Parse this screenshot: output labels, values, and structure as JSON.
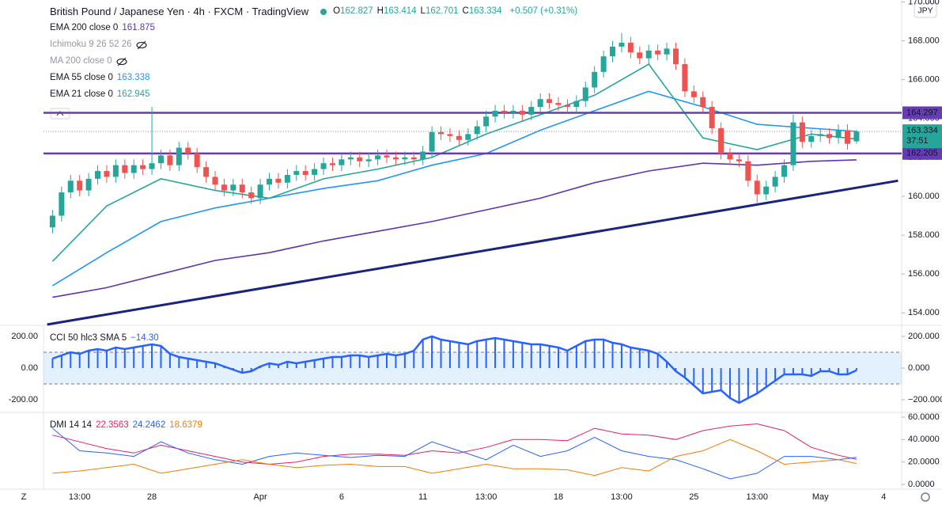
{
  "header": {
    "symbol": "British Pound / Japanese Yen · 4h · FXCM · TradingView",
    "ohlc_prefixes": [
      "O",
      "H",
      "L",
      "C"
    ],
    "change": "+0.507 (+0.31%)",
    "currency": "JPY",
    "countdown": "37:51",
    "timezone_button": "Z"
  },
  "chart_data": [
    {
      "type": "candlestick",
      "open": [
        158.4,
        159.0,
        160.2,
        160.8,
        160.3,
        160.9,
        161.3,
        161.0,
        161.6,
        161.2,
        161.6,
        161.4,
        161.7,
        162.1,
        161.6,
        162.5,
        162.2,
        161.5,
        161.0,
        160.6,
        160.3,
        160.6,
        160.2,
        159.9,
        160.6,
        160.9,
        160.7,
        161.1,
        161.3,
        161.1,
        161.4,
        161.7,
        161.6,
        161.9,
        162.0,
        161.8,
        161.9,
        162.1,
        162.0,
        161.9,
        162.0,
        161.9,
        162.3,
        163.3,
        163.2,
        163.1,
        162.9,
        163.2,
        163.6,
        164.1,
        164.4,
        164.3,
        164.4,
        164.2,
        164.6,
        165.0,
        164.8,
        164.7,
        164.6,
        164.9,
        165.6,
        166.4,
        167.2,
        167.7,
        167.9,
        167.4,
        167.1,
        167.5,
        167.3,
        167.6,
        166.8,
        165.4,
        165.1,
        164.6,
        163.5,
        162.2,
        161.9,
        161.8,
        160.8,
        160.1,
        160.5,
        161.0,
        161.6,
        163.8,
        162.8,
        163.1,
        163.2,
        163.0,
        163.4,
        162.827
      ],
      "high": [
        159.3,
        160.5,
        161.1,
        161.1,
        161.2,
        161.6,
        161.6,
        161.9,
        161.9,
        161.9,
        161.9,
        164.6,
        162.4,
        162.4,
        162.8,
        162.8,
        162.5,
        161.8,
        161.3,
        160.9,
        160.9,
        160.9,
        160.5,
        160.9,
        161.2,
        161.2,
        161.4,
        161.6,
        161.6,
        161.7,
        162.0,
        162.0,
        162.2,
        162.3,
        162.3,
        162.2,
        162.4,
        162.4,
        162.3,
        162.3,
        162.3,
        162.6,
        163.6,
        163.6,
        163.5,
        163.4,
        163.5,
        163.9,
        164.4,
        164.7,
        164.7,
        164.7,
        164.7,
        164.9,
        165.3,
        165.3,
        165.1,
        165.0,
        165.2,
        165.9,
        166.7,
        167.5,
        168.0,
        168.4,
        168.2,
        167.7,
        167.8,
        167.8,
        167.9,
        167.9,
        167.1,
        165.7,
        165.4,
        164.9,
        163.8,
        162.5,
        162.2,
        162.1,
        161.1,
        160.8,
        161.3,
        161.9,
        164.2,
        164.1,
        163.4,
        163.5,
        163.5,
        163.7,
        163.7,
        163.414
      ],
      "low": [
        158.1,
        158.7,
        159.9,
        160.0,
        160.0,
        160.6,
        160.7,
        160.7,
        160.9,
        160.9,
        161.1,
        161.1,
        161.4,
        161.3,
        161.3,
        161.9,
        161.2,
        160.7,
        160.3,
        160.0,
        160.0,
        159.9,
        159.6,
        159.6,
        160.3,
        160.4,
        160.4,
        160.8,
        160.8,
        160.8,
        161.1,
        161.3,
        161.3,
        161.6,
        161.5,
        161.5,
        161.6,
        161.7,
        161.6,
        161.6,
        161.6,
        161.6,
        162.0,
        162.9,
        162.8,
        162.6,
        162.6,
        162.9,
        163.3,
        163.8,
        164.0,
        164.0,
        163.9,
        163.9,
        164.3,
        164.5,
        164.4,
        164.3,
        164.3,
        164.6,
        165.3,
        166.1,
        166.9,
        167.4,
        167.1,
        166.8,
        166.8,
        167.0,
        167.0,
        166.5,
        165.1,
        164.8,
        164.3,
        163.2,
        161.9,
        161.6,
        161.5,
        160.5,
        159.6,
        159.8,
        160.2,
        160.7,
        161.3,
        162.5,
        162.5,
        162.8,
        162.7,
        162.7,
        162.4,
        162.701
      ],
      "close": [
        159.0,
        160.2,
        160.8,
        160.3,
        160.9,
        161.3,
        161.0,
        161.6,
        161.2,
        161.6,
        161.4,
        161.7,
        162.1,
        161.6,
        162.5,
        162.2,
        161.5,
        161.0,
        160.6,
        160.3,
        160.6,
        160.2,
        159.9,
        160.6,
        160.9,
        160.7,
        161.1,
        161.3,
        161.1,
        161.4,
        161.7,
        161.6,
        161.9,
        162.0,
        161.8,
        161.9,
        162.1,
        162.0,
        161.9,
        162.0,
        161.9,
        162.3,
        163.3,
        163.2,
        163.1,
        162.9,
        163.2,
        163.6,
        164.1,
        164.4,
        164.3,
        164.4,
        164.2,
        164.6,
        165.0,
        164.8,
        164.7,
        164.6,
        164.9,
        165.6,
        166.4,
        167.2,
        167.7,
        167.9,
        167.4,
        167.1,
        167.5,
        167.3,
        167.6,
        166.8,
        165.4,
        165.1,
        164.6,
        163.5,
        162.2,
        161.9,
        161.8,
        160.8,
        160.1,
        160.5,
        161.0,
        161.6,
        163.8,
        162.8,
        163.1,
        163.2,
        163.0,
        163.4,
        162.7,
        163.334
      ],
      "up_color": "#26a69a",
      "down_color": "#ef5350",
      "xlim": [
        -1,
        94
      ],
      "xticks": [
        {
          "value": 3,
          "label": "13:00"
        },
        {
          "value": 11,
          "label": "28"
        },
        {
          "value": 23,
          "label": "Apr"
        },
        {
          "value": 32,
          "label": "6"
        },
        {
          "value": 41,
          "label": "11"
        },
        {
          "value": 48,
          "label": "13:00"
        },
        {
          "value": 56,
          "label": "18"
        },
        {
          "value": 63,
          "label": "13:00"
        },
        {
          "value": 71,
          "label": "25"
        },
        {
          "value": 78,
          "label": "13:00"
        },
        {
          "value": 85,
          "label": "May"
        },
        {
          "value": 92,
          "label": "4"
        }
      ],
      "ylim": [
        153.4,
        170.1
      ],
      "yticks": [
        {
          "value": 154,
          "label": "154.000"
        },
        {
          "value": 156,
          "label": "156.000"
        },
        {
          "value": 158,
          "label": "158.000"
        },
        {
          "value": 160,
          "label": "160.000"
        },
        {
          "value": 162,
          "label": "162.000"
        },
        {
          "value": 164,
          "label": "164.000"
        },
        {
          "value": 166,
          "label": "166.000"
        },
        {
          "value": 168,
          "label": "168.000"
        },
        {
          "value": 170,
          "label": "170.000"
        }
      ],
      "indicators": [
        {
          "name": "EMA 200 close 0",
          "color": "#5e35b1",
          "x": [
            0,
            6,
            12,
            18,
            24,
            30,
            36,
            42,
            48,
            54,
            60,
            66,
            72,
            78,
            84,
            89
          ],
          "values": [
            154.8,
            155.3,
            156.0,
            156.7,
            157.1,
            157.7,
            158.2,
            158.7,
            159.3,
            159.9,
            160.7,
            161.3,
            161.7,
            161.6,
            161.8,
            161.875
          ]
        },
        {
          "name": "Ichimoku 9 26 52 26"
        },
        {
          "name": "MA 200 close 0"
        },
        {
          "name": "EMA 55 close 0",
          "color": "#2196f3",
          "x": [
            0,
            6,
            12,
            18,
            24,
            30,
            36,
            42,
            48,
            54,
            60,
            66,
            72,
            78,
            84,
            89
          ],
          "values": [
            155.4,
            157.1,
            158.7,
            159.4,
            159.9,
            160.4,
            160.8,
            161.6,
            162.2,
            163.4,
            164.4,
            165.4,
            164.6,
            163.7,
            163.5,
            163.338
          ]
        },
        {
          "name": "EMA 21 close 0",
          "color": "#26a69a",
          "x": [
            0,
            6,
            12,
            18,
            24,
            30,
            36,
            42,
            48,
            54,
            60,
            66,
            72,
            78,
            84,
            89
          ],
          "values": [
            156.65,
            159.5,
            160.9,
            160.3,
            159.9,
            160.9,
            161.4,
            162.0,
            163.2,
            164.2,
            165.2,
            166.8,
            163.0,
            162.4,
            163.2,
            162.945
          ]
        }
      ],
      "hlines": [
        {
          "value": 164.297,
          "color": "#673ab7"
        },
        {
          "value": 162.205,
          "color": "#673ab7"
        }
      ],
      "trendline": {
        "x": [
          -0.6,
          93.6
        ],
        "values": [
          153.4,
          160.8
        ],
        "color": "#1a237e"
      }
    },
    {
      "type": "bar",
      "title": "CCI 50 hlc3 SMA 5",
      "legend_value": "−14.30",
      "color": "#2962ff",
      "values": [
        60,
        80,
        100,
        90,
        110,
        120,
        110,
        130,
        120,
        130,
        140,
        150,
        140,
        90,
        70,
        60,
        50,
        40,
        30,
        10,
        -10,
        -30,
        -20,
        10,
        30,
        20,
        40,
        30,
        40,
        50,
        60,
        70,
        70,
        80,
        80,
        70,
        80,
        90,
        80,
        90,
        110,
        180,
        200,
        180,
        170,
        160,
        150,
        170,
        180,
        190,
        180,
        170,
        160,
        150,
        150,
        140,
        130,
        110,
        140,
        170,
        180,
        180,
        160,
        150,
        130,
        120,
        110,
        90,
        40,
        -20,
        -60,
        -110,
        -160,
        -150,
        -140,
        -190,
        -220,
        -190,
        -160,
        -120,
        -80,
        -40,
        -40,
        -40,
        -50,
        -20,
        -20,
        -40,
        -40,
        -14.3
      ],
      "bands": [
        -100,
        100
      ],
      "ylim": [
        -275,
        265
      ],
      "yticks": [
        {
          "value": 200,
          "label": "200.000"
        },
        {
          "value": 0,
          "label": "0.000"
        },
        {
          "value": -200,
          "label": "−200.000"
        }
      ],
      "left_ticks": [
        {
          "value": 200,
          "label": "200.00"
        },
        {
          "value": 0,
          "label": "0.00"
        },
        {
          "value": -200,
          "label": "-200.00"
        }
      ]
    },
    {
      "type": "line",
      "title": "DMI 14 14",
      "x": [
        0,
        3,
        6,
        9,
        12,
        15,
        18,
        21,
        24,
        27,
        30,
        33,
        36,
        39,
        42,
        45,
        48,
        51,
        54,
        57,
        60,
        63,
        66,
        69,
        72,
        75,
        78,
        81,
        84,
        87,
        89
      ],
      "series": [
        {
          "color": "#e91e63",
          "values": [
            44,
            38,
            32,
            28,
            35,
            30,
            25,
            20,
            18,
            20,
            25,
            27,
            27,
            26,
            30,
            28,
            33,
            40,
            40,
            39,
            50,
            45,
            44,
            40,
            48,
            52,
            54,
            48,
            33,
            26,
            22.3563
          ]
        },
        {
          "color": "#2962ff",
          "values": [
            50,
            30,
            28,
            25,
            38,
            28,
            22,
            18,
            25,
            28,
            26,
            24,
            26,
            25,
            38,
            30,
            22,
            35,
            25,
            30,
            42,
            30,
            25,
            22,
            14,
            5,
            10,
            25,
            25,
            22,
            24.2462
          ]
        },
        {
          "color": "#f57c00",
          "values": [
            10,
            12,
            15,
            18,
            10,
            14,
            18,
            22,
            18,
            15,
            17,
            18,
            16,
            16,
            10,
            14,
            18,
            14,
            14,
            13,
            8,
            15,
            12,
            25,
            30,
            40,
            30,
            18,
            20,
            22,
            18.6379
          ]
        }
      ],
      "ylim": [
        -4.2,
        63.5
      ],
      "yticks": [
        {
          "value": 60,
          "label": "60.0000"
        },
        {
          "value": 40,
          "label": "40.0000"
        },
        {
          "value": 20,
          "label": "20.0000"
        },
        {
          "value": 0,
          "label": "0.0000"
        }
      ]
    }
  ]
}
